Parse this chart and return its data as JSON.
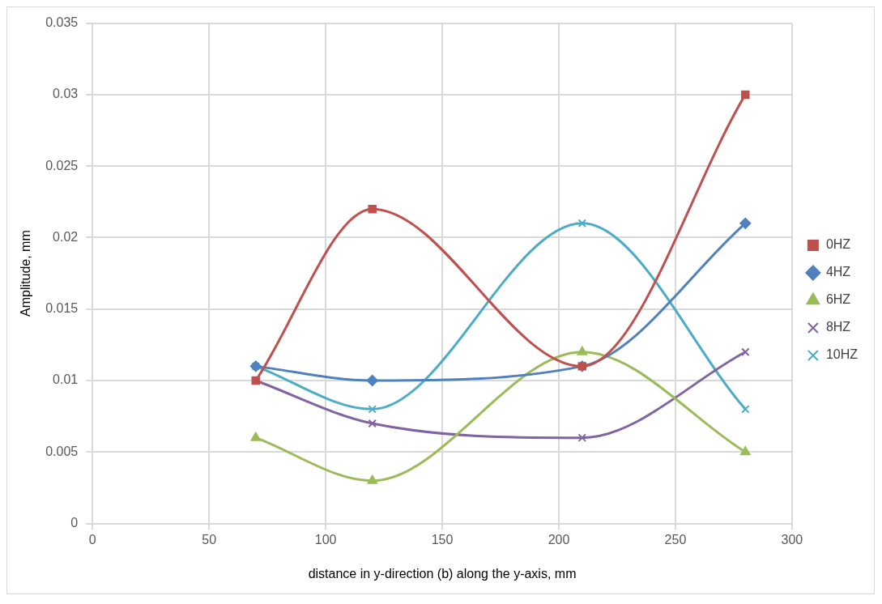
{
  "chart_data": {
    "type": "line",
    "xlabel": "distance in y-direction (b) along the y-axis, mm",
    "ylabel": "Amplitude, mm",
    "x": [
      70,
      120,
      210,
      280
    ],
    "series": [
      {
        "name": "0HZ",
        "color": "#c0504d",
        "marker": "square",
        "values": [
          0.01,
          0.022,
          0.011,
          0.03
        ]
      },
      {
        "name": "4HZ",
        "color": "#4f81bd",
        "marker": "diamond",
        "values": [
          0.011,
          0.01,
          0.011,
          0.021
        ]
      },
      {
        "name": "6HZ",
        "color": "#9bbb59",
        "marker": "triangle",
        "values": [
          0.006,
          0.003,
          0.012,
          0.005
        ]
      },
      {
        "name": "8HZ",
        "color": "#8064a2",
        "marker": "cross",
        "values": [
          0.01,
          0.007,
          0.006,
          0.012
        ]
      },
      {
        "name": "10HZ",
        "color": "#4bacc6",
        "marker": "cross",
        "values": [
          0.011,
          0.008,
          0.021,
          0.008
        ]
      }
    ],
    "xlim": [
      0,
      300
    ],
    "xticks": [
      0,
      50,
      100,
      150,
      200,
      250,
      300
    ],
    "ylim": [
      0,
      0.035
    ],
    "yticks": [
      0,
      0.005,
      0.01,
      0.015,
      0.02,
      0.025,
      0.03,
      0.035
    ],
    "grid": true,
    "legend": "right"
  }
}
